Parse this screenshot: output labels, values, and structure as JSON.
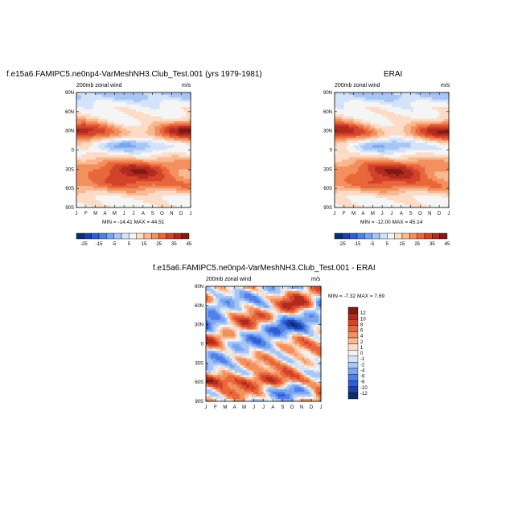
{
  "panels": [
    {
      "title": "f.e15a6.FAMIPC5.ne0np4-VarMeshNH3.Club_Test.001 (yrs 1979-1981)",
      "left_label": "200mb zonal wind",
      "right_label": "m/s",
      "stats": "MIN = -14.41  MAX =   44.51",
      "min": -14.41,
      "max": 44.51
    },
    {
      "title": "ERAI",
      "left_label": "200mb zonal wind",
      "right_label": "m/s",
      "stats": "MIN = -12.00  MAX =   45.14",
      "min": -12.0,
      "max": 45.14
    },
    {
      "title": "f.e15a6.FAMIPC5.ne0np4-VarMeshNH3.Club_Test.001 - ERAI",
      "left_label": "200mb zonal wind",
      "right_label": "m/s",
      "stats": "MIN =   -7.32  MAX =    7.69",
      "min": -7.32,
      "max": 7.69
    }
  ],
  "chart_data": [
    {
      "type": "heatmap",
      "title": "f.e15a6.FAMIPC5.ne0np4-VarMeshNH3.Club_Test.001 (yrs 1979-1981)",
      "subtitle_left": "200mb zonal wind",
      "subtitle_right": "m/s",
      "x_ticks": [
        "J",
        "F",
        "M",
        "A",
        "M",
        "J",
        "J",
        "A",
        "S",
        "O",
        "N",
        "D",
        "J"
      ],
      "y_ticks": [
        "90N",
        "60N",
        "30N",
        "0",
        "30S",
        "60S",
        "90S"
      ],
      "ylim": [
        -90,
        90
      ],
      "colorbar_levels": [
        -25,
        -20,
        -15,
        -10,
        -5,
        0,
        5,
        10,
        15,
        20,
        25,
        30,
        35,
        40,
        45
      ],
      "colorbar_labels": [
        "-25",
        "-15",
        "-5",
        "5",
        "15",
        "25",
        "35",
        "45"
      ],
      "min": -14.41,
      "max": 44.51
    },
    {
      "type": "heatmap",
      "title": "ERAI",
      "subtitle_left": "200mb zonal wind",
      "subtitle_right": "m/s",
      "x_ticks": [
        "J",
        "F",
        "M",
        "A",
        "M",
        "J",
        "J",
        "A",
        "S",
        "O",
        "N",
        "D",
        "J"
      ],
      "y_ticks": [
        "90N",
        "60N",
        "30N",
        "0",
        "30S",
        "60S",
        "90S"
      ],
      "ylim": [
        -90,
        90
      ],
      "colorbar_levels": [
        -25,
        -20,
        -15,
        -10,
        -5,
        0,
        5,
        10,
        15,
        20,
        25,
        30,
        35,
        40,
        45
      ],
      "colorbar_labels": [
        "-25",
        "-15",
        "-5",
        "5",
        "15",
        "25",
        "35",
        "45"
      ],
      "min": -12.0,
      "max": 45.14
    },
    {
      "type": "heatmap",
      "title": "f.e15a6.FAMIPC5.ne0np4-VarMeshNH3.Club_Test.001 - ERAI",
      "subtitle_left": "200mb zonal wind",
      "subtitle_right": "m/s",
      "x_ticks": [
        "J",
        "F",
        "M",
        "A",
        "M",
        "J",
        "J",
        "A",
        "S",
        "O",
        "N",
        "D",
        "J"
      ],
      "y_ticks": [
        "90N",
        "60N",
        "30N",
        "0",
        "30S",
        "60S",
        "90S"
      ],
      "ylim": [
        -90,
        90
      ],
      "colorbar_labels": [
        "12",
        "10",
        "8",
        "6",
        "4",
        "2",
        "1",
        "0",
        "-1",
        "-2",
        "-4",
        "-6",
        "-8",
        "-10",
        "-12"
      ],
      "min": -7.32,
      "max": 7.69
    }
  ],
  "colors": {
    "abs_scale": [
      "#08306b",
      "#1f3fa8",
      "#2f5fd6",
      "#4f80e8",
      "#7aa5f0",
      "#a8c6f5",
      "#d2e3fa",
      "#f5f5f5",
      "#fcdcc6",
      "#f8b992",
      "#f3905f",
      "#e8673b",
      "#d3432a",
      "#b02a1e",
      "#7f1a12"
    ],
    "diff_scale": [
      "#7f1a12",
      "#b02a1e",
      "#d3432a",
      "#e8673b",
      "#f3905f",
      "#f8b992",
      "#fcdcc6",
      "#f2f2f2",
      "#d2e3fa",
      "#a8c6f5",
      "#7aa5f0",
      "#4f80e8",
      "#2f5fd6",
      "#1f3fa8",
      "#08306b"
    ]
  }
}
